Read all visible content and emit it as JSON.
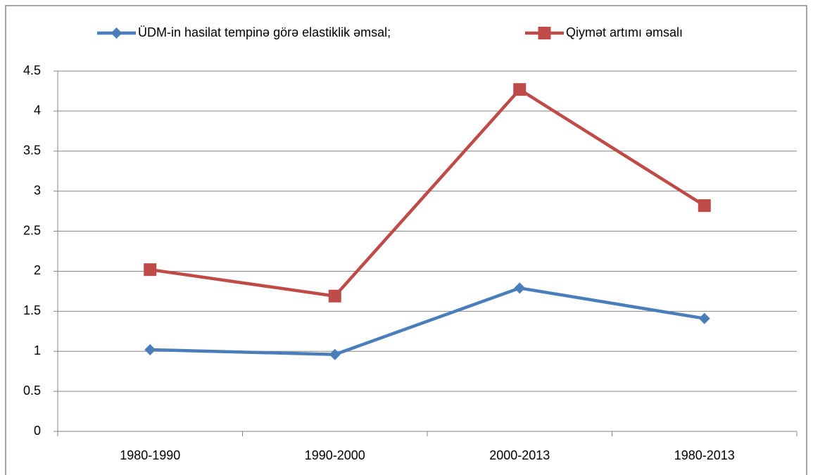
{
  "chart_data": {
    "type": "line",
    "categories": [
      "1980-1990",
      "1990-2000",
      "2000-2013",
      "1980-2013"
    ],
    "series": [
      {
        "name": "ÜDM-in hasilat tempinə görə elastiklik əmsal;",
        "color": "#4a7ebb",
        "marker": "diamond",
        "values": [
          1.02,
          0.96,
          1.79,
          1.41
        ]
      },
      {
        "name": "Qiymət artımı əmsalı",
        "color": "#be4b48",
        "marker": "square",
        "values": [
          2.02,
          1.69,
          4.27,
          2.82
        ]
      }
    ],
    "ylim": [
      0,
      4.5
    ],
    "yticks": [
      0,
      0.5,
      1,
      1.5,
      2,
      2.5,
      3,
      3.5,
      4,
      4.5
    ],
    "grid": true,
    "legend": "top"
  }
}
